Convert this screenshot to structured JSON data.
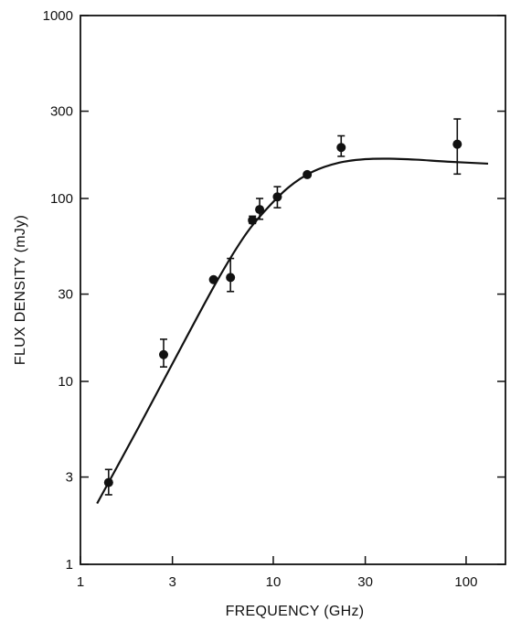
{
  "chart_data": {
    "type": "scatter",
    "title": "",
    "xlabel": "FREQUENCY (GHz)",
    "ylabel": "FLUX DENSITY (mJy)",
    "x_scale": "log",
    "y_scale": "log",
    "xlim": [
      1,
      160
    ],
    "ylim": [
      1,
      1000
    ],
    "grid": false,
    "x_ticks": [
      1,
      3,
      10,
      30,
      100
    ],
    "x_tick_labels": [
      "1",
      "3",
      "10",
      "30",
      "100"
    ],
    "y_ticks": [
      1,
      3,
      10,
      30,
      100,
      300,
      1000
    ],
    "y_tick_labels": [
      "1",
      "3",
      "10",
      "30",
      "100",
      "300",
      "1000"
    ],
    "series": [
      {
        "kind": "points_with_error_bars",
        "color": "#111111",
        "points": [
          {
            "x": 1.4,
            "y": 2.8,
            "err_low": 2.4,
            "err_high": 3.3
          },
          {
            "x": 2.7,
            "y": 14,
            "err_low": 12,
            "err_high": 17
          },
          {
            "x": 4.9,
            "y": 36
          },
          {
            "x": 6.0,
            "y": 37,
            "err_low": 31,
            "err_high": 47
          },
          {
            "x": 7.8,
            "y": 76,
            "err_low": 73,
            "err_high": 80
          },
          {
            "x": 8.5,
            "y": 87,
            "err_low": 77,
            "err_high": 100
          },
          {
            "x": 10.5,
            "y": 102,
            "err_low": 89,
            "err_high": 116
          },
          {
            "x": 15,
            "y": 135
          },
          {
            "x": 22.5,
            "y": 190,
            "err_low": 170,
            "err_high": 220
          },
          {
            "x": 90,
            "y": 198,
            "err_low": 136,
            "err_high": 272
          }
        ]
      },
      {
        "kind": "fit_curve",
        "color": "#111111",
        "points": [
          {
            "x": 1.22,
            "y": 2.15
          },
          {
            "x": 2.0,
            "y": 5.6
          },
          {
            "x": 3.0,
            "y": 12.5
          },
          {
            "x": 5.0,
            "y": 34
          },
          {
            "x": 7.0,
            "y": 61
          },
          {
            "x": 9.0,
            "y": 85
          },
          {
            "x": 12.0,
            "y": 115
          },
          {
            "x": 16.0,
            "y": 140
          },
          {
            "x": 22.0,
            "y": 157
          },
          {
            "x": 30.0,
            "y": 164
          },
          {
            "x": 40.0,
            "y": 165
          },
          {
            "x": 55.0,
            "y": 163
          },
          {
            "x": 80.0,
            "y": 159
          },
          {
            "x": 130.0,
            "y": 155
          }
        ]
      }
    ]
  }
}
